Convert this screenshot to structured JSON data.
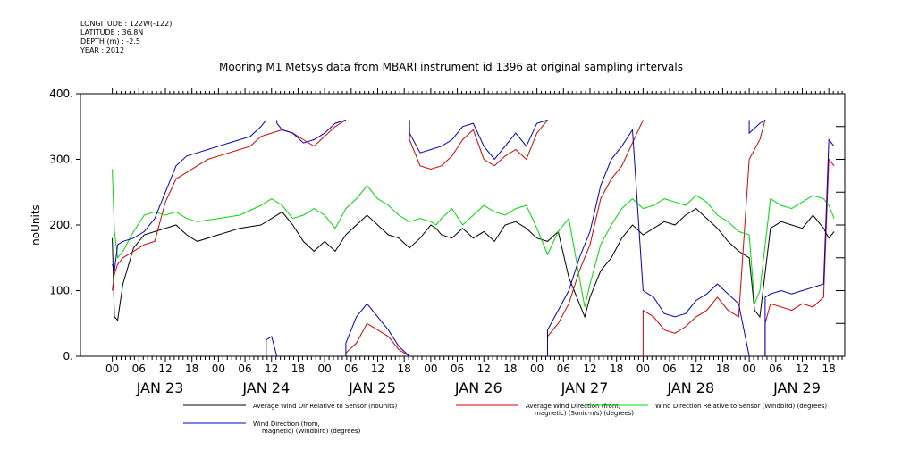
{
  "header": {
    "meta_lines": [
      "LONGITUDE : 122W(-122)",
      "LATITUDE : 36.8N",
      "DEPTH (m) : -2.5",
      "YEAR : 2012"
    ],
    "title": "Mooring M1 Metsys data from MBARI instrument id 1396 at original sampling intervals"
  },
  "chart_data": {
    "type": "line",
    "title": "Mooring M1 Metsys data from MBARI instrument id 1396 at original sampling intervals",
    "ylabel": "noUnits",
    "xlabel": "",
    "ylim": [
      0,
      400
    ],
    "yticks": [
      0,
      100,
      200,
      300,
      400
    ],
    "xlim": [
      -0.3,
      6.9
    ],
    "hour_ticks": [
      "00",
      "06",
      "12",
      "18",
      "00",
      "06",
      "12",
      "18",
      "00",
      "06",
      "12",
      "18",
      "00",
      "06",
      "12",
      "18",
      "00",
      "06",
      "12",
      "18",
      "00",
      "06",
      "12",
      "18",
      "00",
      "06",
      "12",
      "18"
    ],
    "date_labels": [
      "JAN 23",
      "JAN 24",
      "JAN 25",
      "JAN 26",
      "JAN 27",
      "JAN 28",
      "JAN 29"
    ],
    "x_unit_note": "x values are days after JAN 23 00:00",
    "series": [
      {
        "name": "Average Wind Dir Relative to Sensor (noUnits)",
        "color": "#000000",
        "points": [
          [
            0,
            180
          ],
          [
            0.02,
            60
          ],
          [
            0.05,
            55
          ],
          [
            0.1,
            110
          ],
          [
            0.2,
            165
          ],
          [
            0.3,
            185
          ],
          [
            0.4,
            190
          ],
          [
            0.5,
            195
          ],
          [
            0.6,
            200
          ],
          [
            0.7,
            185
          ],
          [
            0.8,
            175
          ],
          [
            1.0,
            185
          ],
          [
            1.2,
            195
          ],
          [
            1.4,
            200
          ],
          [
            1.5,
            210
          ],
          [
            1.6,
            220
          ],
          [
            1.7,
            200
          ],
          [
            1.8,
            175
          ],
          [
            1.9,
            160
          ],
          [
            2.0,
            175
          ],
          [
            2.1,
            160
          ],
          [
            2.2,
            185
          ],
          [
            2.3,
            200
          ],
          [
            2.4,
            215
          ],
          [
            2.5,
            200
          ],
          [
            2.6,
            185
          ],
          [
            2.7,
            180
          ],
          [
            2.8,
            165
          ],
          [
            2.9,
            180
          ],
          [
            3.0,
            200
          ],
          [
            3.05,
            195
          ],
          [
            3.1,
            185
          ],
          [
            3.2,
            180
          ],
          [
            3.3,
            195
          ],
          [
            3.4,
            180
          ],
          [
            3.5,
            190
          ],
          [
            3.6,
            175
          ],
          [
            3.7,
            200
          ],
          [
            3.8,
            205
          ],
          [
            3.9,
            195
          ],
          [
            4.0,
            180
          ],
          [
            4.1,
            175
          ],
          [
            4.2,
            190
          ],
          [
            4.3,
            120
          ],
          [
            4.45,
            60
          ],
          [
            4.5,
            90
          ],
          [
            4.6,
            130
          ],
          [
            4.7,
            150
          ],
          [
            4.8,
            180
          ],
          [
            4.9,
            200
          ],
          [
            5.0,
            185
          ],
          [
            5.1,
            195
          ],
          [
            5.2,
            205
          ],
          [
            5.3,
            200
          ],
          [
            5.4,
            215
          ],
          [
            5.5,
            225
          ],
          [
            5.6,
            210
          ],
          [
            5.7,
            195
          ],
          [
            5.8,
            175
          ],
          [
            5.9,
            160
          ],
          [
            6.0,
            150
          ],
          [
            6.05,
            70
          ],
          [
            6.1,
            60
          ],
          [
            6.2,
            195
          ],
          [
            6.3,
            205
          ],
          [
            6.4,
            200
          ],
          [
            6.5,
            195
          ],
          [
            6.6,
            215
          ],
          [
            6.7,
            195
          ],
          [
            6.75,
            180
          ],
          [
            6.8,
            190
          ]
        ]
      },
      {
        "name": "Average Wind Direction (from, magnetic) (Sonic-n/s) (degrees)",
        "color": "#dd0000",
        "points": [
          [
            0,
            100
          ],
          [
            0.02,
            125
          ],
          [
            0.05,
            140
          ],
          [
            0.1,
            150
          ],
          [
            0.2,
            160
          ],
          [
            0.3,
            170
          ],
          [
            0.4,
            175
          ],
          [
            0.5,
            235
          ],
          [
            0.6,
            270
          ],
          [
            0.7,
            280
          ],
          [
            0.8,
            290
          ],
          [
            0.9,
            300
          ],
          [
            1.0,
            305
          ],
          [
            1.1,
            310
          ],
          [
            1.2,
            315
          ],
          [
            1.3,
            320
          ],
          [
            1.4,
            335
          ],
          [
            1.5,
            340
          ],
          [
            1.6,
            345
          ],
          [
            1.7,
            340
          ],
          [
            1.8,
            330
          ],
          [
            1.9,
            320
          ],
          [
            2.0,
            335
          ],
          [
            2.1,
            350
          ],
          [
            2.2,
            5
          ],
          [
            2.3,
            20
          ],
          [
            2.4,
            50
          ],
          [
            2.5,
            40
          ],
          [
            2.6,
            30
          ],
          [
            2.7,
            10
          ],
          [
            2.8,
            330
          ],
          [
            2.9,
            290
          ],
          [
            3.0,
            285
          ],
          [
            3.1,
            290
          ],
          [
            3.2,
            305
          ],
          [
            3.3,
            330
          ],
          [
            3.4,
            345
          ],
          [
            3.5,
            300
          ],
          [
            3.6,
            290
          ],
          [
            3.7,
            305
          ],
          [
            3.8,
            315
          ],
          [
            3.9,
            300
          ],
          [
            4.0,
            340
          ],
          [
            4.1,
            30
          ],
          [
            4.2,
            50
          ],
          [
            4.3,
            80
          ],
          [
            4.4,
            130
          ],
          [
            4.5,
            170
          ],
          [
            4.6,
            240
          ],
          [
            4.7,
            270
          ],
          [
            4.8,
            290
          ],
          [
            4.9,
            325
          ],
          [
            5.0,
            70
          ],
          [
            5.1,
            60
          ],
          [
            5.2,
            40
          ],
          [
            5.3,
            35
          ],
          [
            5.4,
            45
          ],
          [
            5.5,
            60
          ],
          [
            5.6,
            70
          ],
          [
            5.7,
            90
          ],
          [
            5.8,
            70
          ],
          [
            5.9,
            60
          ],
          [
            6.0,
            300
          ],
          [
            6.1,
            330
          ],
          [
            6.15,
            50
          ],
          [
            6.2,
            80
          ],
          [
            6.3,
            75
          ],
          [
            6.4,
            70
          ],
          [
            6.5,
            80
          ],
          [
            6.6,
            75
          ],
          [
            6.7,
            90
          ],
          [
            6.75,
            300
          ],
          [
            6.8,
            290
          ]
        ]
      },
      {
        "name": "Wind Direction Relative to Sensor (Windbird) (degrees)",
        "color": "#00dd00",
        "points": [
          [
            0,
            285
          ],
          [
            0.02,
            190
          ],
          [
            0.05,
            150
          ],
          [
            0.1,
            160
          ],
          [
            0.2,
            190
          ],
          [
            0.3,
            215
          ],
          [
            0.4,
            220
          ],
          [
            0.5,
            215
          ],
          [
            0.6,
            220
          ],
          [
            0.7,
            210
          ],
          [
            0.8,
            205
          ],
          [
            1.0,
            210
          ],
          [
            1.2,
            215
          ],
          [
            1.4,
            230
          ],
          [
            1.5,
            240
          ],
          [
            1.6,
            230
          ],
          [
            1.7,
            210
          ],
          [
            1.8,
            215
          ],
          [
            1.9,
            225
          ],
          [
            2.0,
            215
          ],
          [
            2.1,
            195
          ],
          [
            2.2,
            225
          ],
          [
            2.3,
            240
          ],
          [
            2.4,
            260
          ],
          [
            2.5,
            240
          ],
          [
            2.6,
            230
          ],
          [
            2.7,
            215
          ],
          [
            2.8,
            205
          ],
          [
            2.9,
            210
          ],
          [
            3.0,
            205
          ],
          [
            3.05,
            200
          ],
          [
            3.1,
            210
          ],
          [
            3.2,
            225
          ],
          [
            3.3,
            200
          ],
          [
            3.4,
            215
          ],
          [
            3.5,
            230
          ],
          [
            3.6,
            220
          ],
          [
            3.7,
            215
          ],
          [
            3.8,
            225
          ],
          [
            3.9,
            230
          ],
          [
            4.0,
            195
          ],
          [
            4.1,
            155
          ],
          [
            4.2,
            190
          ],
          [
            4.3,
            210
          ],
          [
            4.4,
            120
          ],
          [
            4.45,
            75
          ],
          [
            4.5,
            110
          ],
          [
            4.6,
            170
          ],
          [
            4.7,
            200
          ],
          [
            4.8,
            225
          ],
          [
            4.9,
            240
          ],
          [
            5.0,
            225
          ],
          [
            5.1,
            230
          ],
          [
            5.2,
            240
          ],
          [
            5.3,
            235
          ],
          [
            5.4,
            230
          ],
          [
            5.5,
            245
          ],
          [
            5.6,
            235
          ],
          [
            5.7,
            215
          ],
          [
            5.8,
            205
          ],
          [
            5.9,
            190
          ],
          [
            6.0,
            185
          ],
          [
            6.05,
            80
          ],
          [
            6.1,
            100
          ],
          [
            6.2,
            240
          ],
          [
            6.3,
            230
          ],
          [
            6.4,
            225
          ],
          [
            6.5,
            235
          ],
          [
            6.6,
            245
          ],
          [
            6.7,
            240
          ],
          [
            6.75,
            230
          ],
          [
            6.8,
            210
          ]
        ]
      },
      {
        "name": "Wind Direction (from, magnetic) (Windbird) (degrees)",
        "color": "#0000cc",
        "points": [
          [
            0,
            140
          ],
          [
            0.02,
            130
          ],
          [
            0.05,
            170
          ],
          [
            0.1,
            175
          ],
          [
            0.2,
            180
          ],
          [
            0.3,
            190
          ],
          [
            0.4,
            210
          ],
          [
            0.5,
            250
          ],
          [
            0.6,
            290
          ],
          [
            0.7,
            305
          ],
          [
            0.8,
            310
          ],
          [
            0.9,
            315
          ],
          [
            1.0,
            320
          ],
          [
            1.1,
            325
          ],
          [
            1.2,
            330
          ],
          [
            1.3,
            335
          ],
          [
            1.4,
            350
          ],
          [
            1.45,
            25
          ],
          [
            1.5,
            30
          ],
          [
            1.55,
            355
          ],
          [
            1.6,
            345
          ],
          [
            1.7,
            340
          ],
          [
            1.8,
            325
          ],
          [
            1.9,
            330
          ],
          [
            2.0,
            340
          ],
          [
            2.1,
            355
          ],
          [
            2.2,
            20
          ],
          [
            2.3,
            60
          ],
          [
            2.4,
            80
          ],
          [
            2.5,
            60
          ],
          [
            2.6,
            40
          ],
          [
            2.7,
            15
          ],
          [
            2.8,
            340
          ],
          [
            2.9,
            310
          ],
          [
            3.0,
            315
          ],
          [
            3.1,
            320
          ],
          [
            3.2,
            330
          ],
          [
            3.3,
            350
          ],
          [
            3.4,
            355
          ],
          [
            3.5,
            320
          ],
          [
            3.6,
            300
          ],
          [
            3.7,
            320
          ],
          [
            3.8,
            340
          ],
          [
            3.9,
            320
          ],
          [
            4.0,
            355
          ],
          [
            4.1,
            40
          ],
          [
            4.2,
            70
          ],
          [
            4.3,
            100
          ],
          [
            4.4,
            150
          ],
          [
            4.5,
            190
          ],
          [
            4.6,
            260
          ],
          [
            4.7,
            300
          ],
          [
            4.8,
            320
          ],
          [
            4.9,
            345
          ],
          [
            5.0,
            100
          ],
          [
            5.1,
            90
          ],
          [
            5.2,
            65
          ],
          [
            5.3,
            60
          ],
          [
            5.4,
            65
          ],
          [
            5.5,
            85
          ],
          [
            5.6,
            95
          ],
          [
            5.7,
            110
          ],
          [
            5.8,
            95
          ],
          [
            5.9,
            80
          ],
          [
            6.0,
            340
          ],
          [
            6.1,
            355
          ],
          [
            6.15,
            90
          ],
          [
            6.2,
            95
          ],
          [
            6.3,
            100
          ],
          [
            6.4,
            95
          ],
          [
            6.5,
            100
          ],
          [
            6.6,
            105
          ],
          [
            6.7,
            110
          ],
          [
            6.75,
            330
          ],
          [
            6.8,
            320
          ]
        ]
      }
    ],
    "legend": [
      {
        "line1": "Average Wind Dir Relative to Sensor (noUnits)",
        "line2": "",
        "color": "#000000"
      },
      {
        "line1": "Average Wind Direction (from,",
        "line2": "magnetic) (Sonic-n/s) (degrees)",
        "color": "#dd0000"
      },
      {
        "line1": "Wind Direction Relative to Sensor (Windbird) (degrees)",
        "line2": "",
        "color": "#00dd00"
      },
      {
        "line1": "Wind Direction (from,",
        "line2": "magnetic) (Windbird) (degrees)",
        "color": "#0000cc"
      }
    ],
    "grid": false,
    "legend_position": "bottom"
  }
}
